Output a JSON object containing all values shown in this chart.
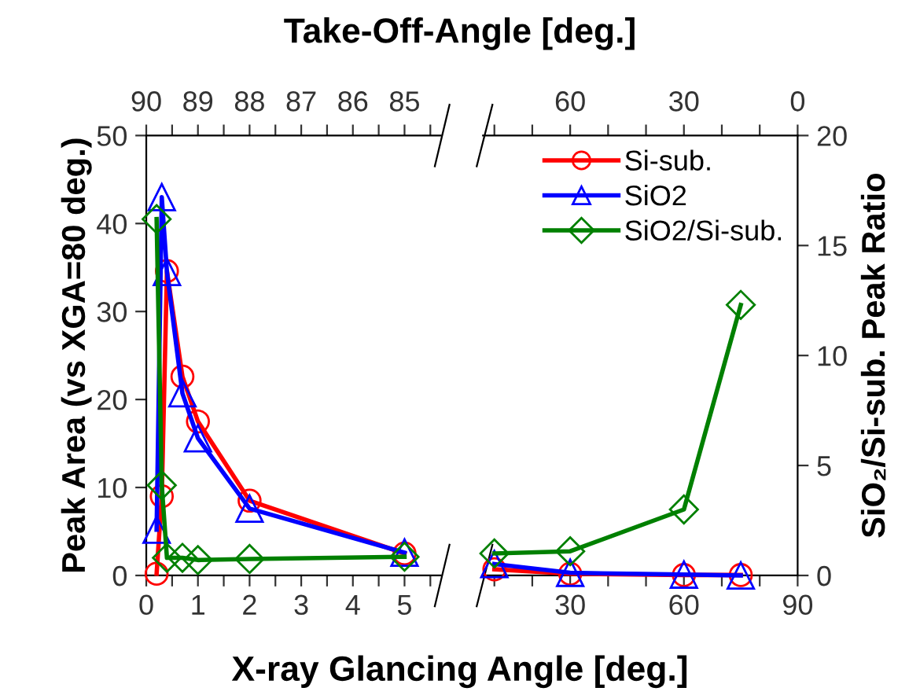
{
  "chart_data": [
    {
      "type": "line",
      "xlabel": "X-ray Glancing Angle [deg.]",
      "x2label": "Take-Off-Angle [deg.]",
      "ylabel": "Peak Area (vs XGA=80 deg.)",
      "xlim": [
        0,
        5.7
      ],
      "xticks": [
        0,
        {
          "value": 0.5,
          "label": null
        },
        1,
        {
          "value": 1.5,
          "label": null
        },
        2,
        {
          "value": 2.5,
          "label": null
        },
        3,
        {
          "value": 3.5,
          "label": null
        },
        4,
        {
          "value": 4.5,
          "label": null
        },
        5,
        {
          "value": 5.5,
          "label": null
        }
      ],
      "x2lim": [
        90,
        84.3
      ],
      "x2ticks": [
        90,
        {
          "value": 89.5,
          "label": null
        },
        89,
        {
          "value": 88.5,
          "label": null
        },
        88,
        {
          "value": 87.5,
          "label": null
        },
        87,
        {
          "value": 86.5,
          "label": null
        },
        86,
        {
          "value": 85.5,
          "label": null
        },
        85,
        {
          "value": 84.5,
          "label": null
        }
      ],
      "ylim": [
        0,
        50
      ],
      "yticks": [
        0,
        10,
        20,
        30,
        40,
        50
      ],
      "y2lim": [
        0,
        20
      ],
      "grid": false,
      "legend": false,
      "line_style": "solid",
      "series": [
        {
          "color": "#ff0000",
          "marker": "circle",
          "x": [
            0.2,
            0.3,
            0.4,
            0.7,
            1.0,
            2.0,
            5.0
          ],
          "values": [
            0.2,
            9.0,
            34.6,
            22.6,
            17.5,
            8.5,
            2.5
          ]
        },
        {
          "color": "#0000ff",
          "marker": "triangle",
          "x": [
            0.2,
            0.3,
            0.4,
            0.7,
            1.0,
            2.0,
            5.0
          ],
          "values": [
            5.2,
            43,
            34.5,
            20.7,
            15.6,
            7.6,
            2.6
          ]
        },
        {
          "color": "#008000",
          "marker": "diamond",
          "axis": "y2",
          "x": [
            0.2,
            0.3,
            0.4,
            0.7,
            1.0,
            2.0,
            5.0
          ],
          "values": [
            16.2,
            4.1,
            0.8,
            0.8,
            0.7,
            0.75,
            0.85
          ]
        }
      ]
    },
    {
      "type": "line",
      "y2label": "SiO₂/Si-sub. Peak Ratio",
      "xlim": [
        7,
        90
      ],
      "xticks": [
        {
          "value": 10,
          "label": null
        },
        {
          "value": 20,
          "label": null
        },
        30,
        {
          "value": 40,
          "label": null
        },
        {
          "value": 50,
          "label": null
        },
        60,
        {
          "value": 70,
          "label": null
        },
        {
          "value": 80,
          "label": null
        },
        90
      ],
      "x2lim": [
        83,
        0
      ],
      "x2ticks": [
        {
          "value": 80,
          "label": null
        },
        {
          "value": 70,
          "label": null
        },
        60,
        {
          "value": 50,
          "label": null
        },
        {
          "value": 40,
          "label": null
        },
        30,
        {
          "value": 20,
          "label": null
        },
        {
          "value": 10,
          "label": null
        },
        0
      ],
      "ylim": [
        0,
        50
      ],
      "y2lim": [
        0,
        20
      ],
      "y2ticks": [
        0,
        5,
        10,
        15,
        20
      ],
      "grid": false,
      "legend": "top right",
      "line_style": "solid",
      "series": [
        {
          "name": "Si-sub.",
          "color": "#ff0000",
          "marker": "circle",
          "x": [
            10,
            30,
            60,
            75
          ],
          "values": [
            0.7,
            0.2,
            0.05,
            0.05
          ]
        },
        {
          "name": "SiO2",
          "color": "#0000ff",
          "marker": "triangle",
          "x": [
            10,
            30,
            60,
            75
          ],
          "values": [
            1.3,
            0.3,
            0.1,
            0
          ]
        },
        {
          "name": "SiO2/Si-sub.",
          "color": "#008000",
          "marker": "diamond",
          "axis": "y2",
          "x": [
            10,
            30,
            60,
            75
          ],
          "values": [
            1.0,
            1.1,
            3.0,
            12.3
          ]
        }
      ]
    }
  ]
}
